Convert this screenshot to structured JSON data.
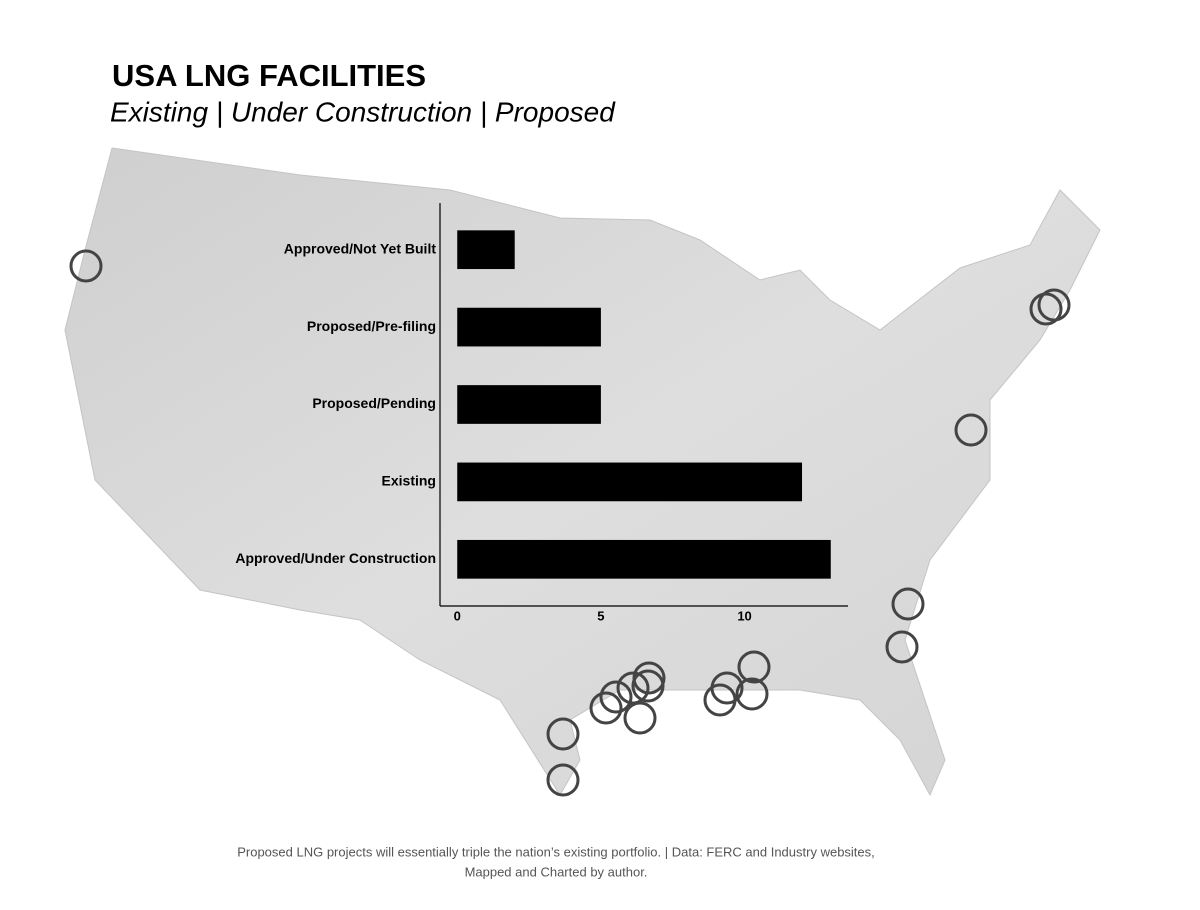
{
  "chart_data": {
    "type": "bar",
    "orientation": "horizontal",
    "title": "USA LNG FACILITIES",
    "subtitle": "Existing | Under Construction | Proposed",
    "caption": [
      "Proposed LNG projects will essentially triple the nation’s existing portfolio. | Data: FERC and Industry websites,",
      "Mapped and Charted by author."
    ],
    "categories": [
      "Approved/Not Yet Built",
      "Proposed/Pre-filing",
      "Proposed/Pending",
      "Existing",
      "Approved/Under Construction"
    ],
    "values": [
      2,
      5,
      5,
      12,
      13
    ],
    "color": "#000000",
    "xlim": [
      -0.6,
      13.6
    ],
    "xticks": [
      0,
      5,
      10
    ],
    "grid": false
  }
}
